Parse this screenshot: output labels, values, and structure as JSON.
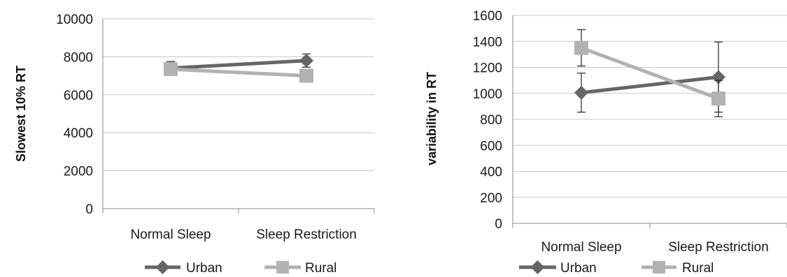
{
  "chart_data": [
    {
      "type": "line",
      "categories": [
        "Normal Sleep",
        "Sleep Restriction"
      ],
      "ylabel": "Slowest 10% RT",
      "ylim": [
        0,
        10000
      ],
      "yticks": [
        0,
        2000,
        4000,
        6000,
        8000,
        10000
      ],
      "grid": true,
      "legend": "bottom",
      "series": [
        {
          "name": "Urban",
          "values": [
            7400,
            7800
          ],
          "error": [
            350,
            350
          ],
          "color": "#666666",
          "marker": "diamond"
        },
        {
          "name": "Rural",
          "values": [
            7350,
            7000
          ],
          "error": [
            0,
            0
          ],
          "color": "#b2b2b2",
          "marker": "square"
        }
      ]
    },
    {
      "type": "line",
      "categories": [
        "Normal Sleep",
        "Sleep Restriction"
      ],
      "ylabel": "variability in RT",
      "ylim": [
        0,
        1600
      ],
      "yticks": [
        0,
        200,
        400,
        600,
        800,
        1000,
        1200,
        1400,
        1600
      ],
      "grid": true,
      "legend": "bottom",
      "series": [
        {
          "name": "Urban",
          "values": [
            1005,
            1125
          ],
          "error": [
            150,
            270
          ],
          "color": "#666666",
          "marker": "diamond"
        },
        {
          "name": "Rural",
          "values": [
            1350,
            960
          ],
          "error": [
            140,
            140
          ],
          "color": "#b2b2b2",
          "marker": "square"
        }
      ]
    }
  ]
}
